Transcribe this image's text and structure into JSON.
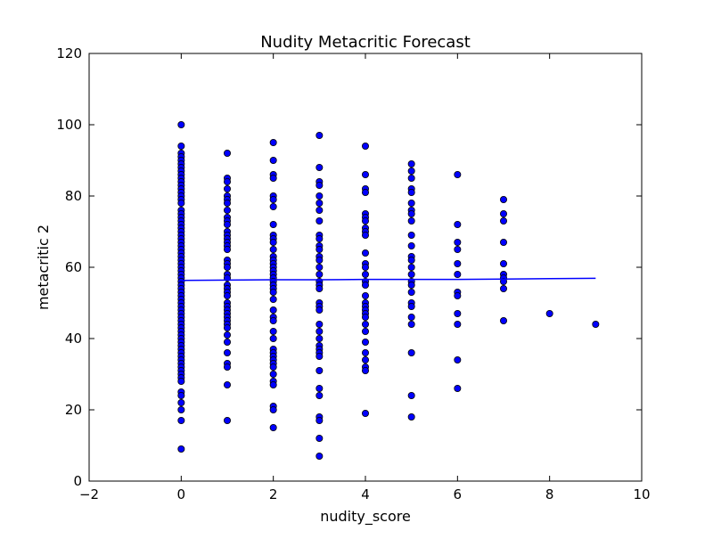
{
  "chart_data": {
    "type": "scatter",
    "title": "Nudity Metacritic Forecast",
    "xlabel": "nudity_score",
    "ylabel": "metacritic 2",
    "xlim": [
      -2,
      10
    ],
    "ylim": [
      0,
      120
    ],
    "xticks": [
      "-2",
      "0",
      "2",
      "4",
      "6",
      "8",
      "10"
    ],
    "yticks": [
      "0",
      "20",
      "40",
      "60",
      "80",
      "100",
      "120"
    ],
    "xtick_values": [
      -2,
      0,
      2,
      4,
      6,
      8,
      10
    ],
    "ytick_values": [
      0,
      20,
      40,
      60,
      80,
      100,
      120
    ],
    "grid": false,
    "legend": "none",
    "point_color": "#0000ff",
    "point_edge_color": "#000000",
    "line_color": "#0000ff",
    "series": [
      {
        "kind": "scatter",
        "points": [
          [
            0,
            100
          ],
          [
            0,
            94
          ],
          [
            0,
            92
          ],
          [
            0,
            91
          ],
          [
            0,
            90
          ],
          [
            0,
            89
          ],
          [
            0,
            88
          ],
          [
            0,
            87
          ],
          [
            0,
            86
          ],
          [
            0,
            85
          ],
          [
            0,
            84
          ],
          [
            0,
            83
          ],
          [
            0,
            82
          ],
          [
            0,
            81
          ],
          [
            0,
            80
          ],
          [
            0,
            79
          ],
          [
            0,
            78
          ],
          [
            0,
            76
          ],
          [
            0,
            75
          ],
          [
            0,
            74
          ],
          [
            0,
            73
          ],
          [
            0,
            72
          ],
          [
            0,
            71
          ],
          [
            0,
            70
          ],
          [
            0,
            69
          ],
          [
            0,
            68
          ],
          [
            0,
            67
          ],
          [
            0,
            66
          ],
          [
            0,
            65
          ],
          [
            0,
            64
          ],
          [
            0,
            63
          ],
          [
            0,
            62
          ],
          [
            0,
            61
          ],
          [
            0,
            60
          ],
          [
            0,
            59
          ],
          [
            0,
            58
          ],
          [
            0,
            57
          ],
          [
            0,
            56
          ],
          [
            0,
            55
          ],
          [
            0,
            54
          ],
          [
            0,
            53
          ],
          [
            0,
            52
          ],
          [
            0,
            51
          ],
          [
            0,
            50
          ],
          [
            0,
            49
          ],
          [
            0,
            48
          ],
          [
            0,
            47
          ],
          [
            0,
            46
          ],
          [
            0,
            45
          ],
          [
            0,
            44
          ],
          [
            0,
            43
          ],
          [
            0,
            42
          ],
          [
            0,
            41
          ],
          [
            0,
            40
          ],
          [
            0,
            39
          ],
          [
            0,
            38
          ],
          [
            0,
            37
          ],
          [
            0,
            36
          ],
          [
            0,
            35
          ],
          [
            0,
            34
          ],
          [
            0,
            33
          ],
          [
            0,
            32
          ],
          [
            0,
            31
          ],
          [
            0,
            30
          ],
          [
            0,
            29
          ],
          [
            0,
            28
          ],
          [
            0,
            25
          ],
          [
            0,
            24
          ],
          [
            0,
            22
          ],
          [
            0,
            20
          ],
          [
            0,
            17
          ],
          [
            0,
            9
          ],
          [
            1,
            92
          ],
          [
            1,
            85
          ],
          [
            1,
            84
          ],
          [
            1,
            82
          ],
          [
            1,
            80
          ],
          [
            1,
            79
          ],
          [
            1,
            78
          ],
          [
            1,
            76
          ],
          [
            1,
            74
          ],
          [
            1,
            73
          ],
          [
            1,
            72
          ],
          [
            1,
            70
          ],
          [
            1,
            69
          ],
          [
            1,
            68
          ],
          [
            1,
            67
          ],
          [
            1,
            66
          ],
          [
            1,
            65
          ],
          [
            1,
            62
          ],
          [
            1,
            61
          ],
          [
            1,
            60
          ],
          [
            1,
            58
          ],
          [
            1,
            57
          ],
          [
            1,
            55
          ],
          [
            1,
            54
          ],
          [
            1,
            53
          ],
          [
            1,
            52
          ],
          [
            1,
            50
          ],
          [
            1,
            49
          ],
          [
            1,
            48
          ],
          [
            1,
            47
          ],
          [
            1,
            46
          ],
          [
            1,
            45
          ],
          [
            1,
            44
          ],
          [
            1,
            43
          ],
          [
            1,
            41
          ],
          [
            1,
            39
          ],
          [
            1,
            36
          ],
          [
            1,
            33
          ],
          [
            1,
            32
          ],
          [
            1,
            27
          ],
          [
            1,
            17
          ],
          [
            2,
            95
          ],
          [
            2,
            90
          ],
          [
            2,
            86
          ],
          [
            2,
            85
          ],
          [
            2,
            80
          ],
          [
            2,
            79
          ],
          [
            2,
            77
          ],
          [
            2,
            72
          ],
          [
            2,
            69
          ],
          [
            2,
            68
          ],
          [
            2,
            67
          ],
          [
            2,
            65
          ],
          [
            2,
            63
          ],
          [
            2,
            62
          ],
          [
            2,
            61
          ],
          [
            2,
            60
          ],
          [
            2,
            59
          ],
          [
            2,
            58
          ],
          [
            2,
            57
          ],
          [
            2,
            56
          ],
          [
            2,
            55
          ],
          [
            2,
            54
          ],
          [
            2,
            53
          ],
          [
            2,
            51
          ],
          [
            2,
            48
          ],
          [
            2,
            46
          ],
          [
            2,
            45
          ],
          [
            2,
            42
          ],
          [
            2,
            40
          ],
          [
            2,
            37
          ],
          [
            2,
            36
          ],
          [
            2,
            35
          ],
          [
            2,
            34
          ],
          [
            2,
            33
          ],
          [
            2,
            32
          ],
          [
            2,
            30
          ],
          [
            2,
            28
          ],
          [
            2,
            27
          ],
          [
            2,
            21
          ],
          [
            2,
            20
          ],
          [
            2,
            15
          ],
          [
            3,
            97
          ],
          [
            3,
            88
          ],
          [
            3,
            84
          ],
          [
            3,
            83
          ],
          [
            3,
            80
          ],
          [
            3,
            78
          ],
          [
            3,
            76
          ],
          [
            3,
            73
          ],
          [
            3,
            69
          ],
          [
            3,
            68
          ],
          [
            3,
            66
          ],
          [
            3,
            65
          ],
          [
            3,
            63
          ],
          [
            3,
            62
          ],
          [
            3,
            60
          ],
          [
            3,
            58
          ],
          [
            3,
            56
          ],
          [
            3,
            55
          ],
          [
            3,
            54
          ],
          [
            3,
            50
          ],
          [
            3,
            49
          ],
          [
            3,
            48
          ],
          [
            3,
            44
          ],
          [
            3,
            42
          ],
          [
            3,
            40
          ],
          [
            3,
            38
          ],
          [
            3,
            37
          ],
          [
            3,
            36
          ],
          [
            3,
            35
          ],
          [
            3,
            31
          ],
          [
            3,
            26
          ],
          [
            3,
            24
          ],
          [
            3,
            18
          ],
          [
            3,
            17
          ],
          [
            3,
            12
          ],
          [
            3,
            7
          ],
          [
            4,
            94
          ],
          [
            4,
            86
          ],
          [
            4,
            82
          ],
          [
            4,
            81
          ],
          [
            4,
            75
          ],
          [
            4,
            74
          ],
          [
            4,
            73
          ],
          [
            4,
            71
          ],
          [
            4,
            70
          ],
          [
            4,
            69
          ],
          [
            4,
            64
          ],
          [
            4,
            61
          ],
          [
            4,
            60
          ],
          [
            4,
            58
          ],
          [
            4,
            56
          ],
          [
            4,
            55
          ],
          [
            4,
            52
          ],
          [
            4,
            50
          ],
          [
            4,
            49
          ],
          [
            4,
            48
          ],
          [
            4,
            47
          ],
          [
            4,
            46
          ],
          [
            4,
            44
          ],
          [
            4,
            42
          ],
          [
            4,
            39
          ],
          [
            4,
            36
          ],
          [
            4,
            34
          ],
          [
            4,
            32
          ],
          [
            4,
            31
          ],
          [
            4,
            19
          ],
          [
            5,
            89
          ],
          [
            5,
            87
          ],
          [
            5,
            85
          ],
          [
            5,
            82
          ],
          [
            5,
            81
          ],
          [
            5,
            78
          ],
          [
            5,
            76
          ],
          [
            5,
            75
          ],
          [
            5,
            73
          ],
          [
            5,
            69
          ],
          [
            5,
            66
          ],
          [
            5,
            63
          ],
          [
            5,
            62
          ],
          [
            5,
            60
          ],
          [
            5,
            58
          ],
          [
            5,
            56
          ],
          [
            5,
            55
          ],
          [
            5,
            53
          ],
          [
            5,
            50
          ],
          [
            5,
            49
          ],
          [
            5,
            46
          ],
          [
            5,
            44
          ],
          [
            5,
            36
          ],
          [
            5,
            24
          ],
          [
            5,
            18
          ],
          [
            6,
            86
          ],
          [
            6,
            72
          ],
          [
            6,
            67
          ],
          [
            6,
            65
          ],
          [
            6,
            61
          ],
          [
            6,
            58
          ],
          [
            6,
            53
          ],
          [
            6,
            52
          ],
          [
            6,
            47
          ],
          [
            6,
            44
          ],
          [
            6,
            34
          ],
          [
            6,
            26
          ],
          [
            7,
            79
          ],
          [
            7,
            75
          ],
          [
            7,
            73
          ],
          [
            7,
            67
          ],
          [
            7,
            61
          ],
          [
            7,
            58
          ],
          [
            7,
            57
          ],
          [
            7,
            56
          ],
          [
            7,
            54
          ],
          [
            7,
            45
          ],
          [
            8,
            47
          ],
          [
            9,
            44
          ]
        ]
      },
      {
        "kind": "line",
        "points": [
          [
            0,
            56.3
          ],
          [
            1,
            56.4
          ],
          [
            2,
            56.5
          ],
          [
            3,
            56.5
          ],
          [
            4,
            56.6
          ],
          [
            5,
            56.6
          ],
          [
            6,
            56.6
          ],
          [
            7,
            56.7
          ],
          [
            8,
            56.8
          ],
          [
            9,
            56.9
          ]
        ]
      }
    ]
  }
}
